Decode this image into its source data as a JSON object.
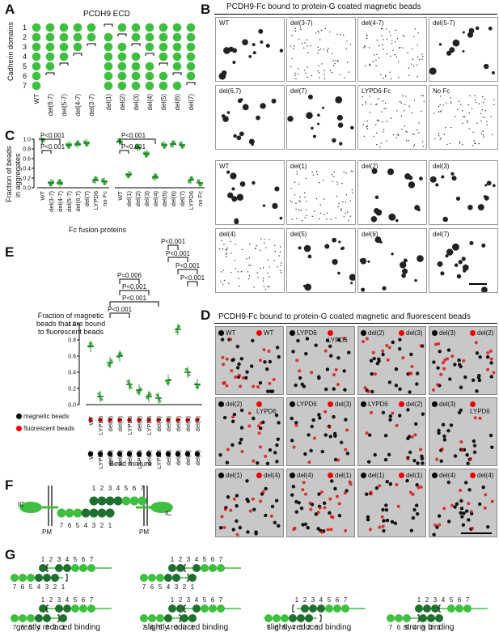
{
  "panels": {
    "A": "A",
    "B": "B",
    "C": "C",
    "D": "D",
    "E": "E",
    "F": "F",
    "G": "G"
  },
  "a": {
    "title": "PCDH9 ECD",
    "ylabel": "Cadherin domains",
    "domain_numbers": [
      "1",
      "2",
      "3",
      "4",
      "5",
      "6",
      "7"
    ],
    "constructs": [
      "WT",
      "del(6,7)",
      "del(5-7)",
      "del(4-7)",
      "del(3-7)",
      "del(1)",
      "del(2)",
      "del(3)",
      "del(4)",
      "del(5)",
      "del(6)",
      "del(7)"
    ]
  },
  "b": {
    "title": "PCDH9-Fc bound to protein-G coated magnetic beads",
    "row1": [
      "WT",
      "del(3-7)",
      "del(4-7)",
      "del(5-7)"
    ],
    "row2": [
      "del(6,7)",
      "del(7)",
      "LYPD6-Fc",
      "No Fc"
    ],
    "row3": [
      "WT",
      "del(1)",
      "del(2)",
      "del(3)"
    ],
    "row4": [
      "del(4)",
      "del(5)",
      "del(6)",
      "del(7)"
    ]
  },
  "c": {
    "ylabel_1": "Fraction of beads",
    "ylabel_2": "in aggregates",
    "yticks": [
      "0.0",
      "0.2",
      "0.4",
      "0.6",
      "0.8",
      "1.0"
    ],
    "xlabel": "Fc fusion proteins",
    "left_labels": [
      "WT",
      "del(3-7)",
      "del(4-7)",
      "del(5-7)",
      "del(6,7)",
      "del(7)",
      "LYPD6",
      "no Fc"
    ],
    "right_labels": [
      "WT",
      "del(1)",
      "del(2)",
      "del(3)",
      "del(4)",
      "del(5)",
      "del(6)",
      "del(7)",
      "LYPD6",
      "no Fc"
    ],
    "p_left": [
      "P<0.001",
      "P<0.001"
    ],
    "p_right": [
      "P<0.001",
      "P<0.001"
    ]
  },
  "chart_data": [
    {
      "type": "scatter",
      "title": "",
      "ylabel": "Fraction of beads in aggregates",
      "xlabel": "Fc fusion proteins",
      "ylim": [
        0,
        1.0
      ],
      "categories": [
        "WT",
        "del(3-7)",
        "del(4-7)",
        "del(5-7)",
        "del(6,7)",
        "del(7)",
        "LYPD6",
        "no Fc"
      ],
      "values": [
        1.0,
        0.1,
        0.1,
        0.88,
        0.9,
        0.92,
        0.16,
        0.13
      ]
    },
    {
      "type": "scatter",
      "title": "",
      "ylabel": "Fraction of beads in aggregates",
      "xlabel": "Fc fusion proteins",
      "ylim": [
        0,
        1.0
      ],
      "categories": [
        "WT",
        "del(1)",
        "del(2)",
        "del(3)",
        "del(4)",
        "del(5)",
        "del(6)",
        "del(7)",
        "LYPD6",
        "no Fc"
      ],
      "values": [
        0.95,
        0.27,
        0.83,
        0.7,
        0.22,
        0.88,
        0.9,
        0.88,
        0.16,
        0.1
      ]
    },
    {
      "type": "scatter",
      "title": "",
      "ylabel": "Fraction of magnetic beads that are bound to fluorescent beads",
      "xlabel": "Bead mixture",
      "ylim": [
        0,
        1.0
      ],
      "categories": [
        "WT/WT",
        "LYPD6/LYPD6",
        "del(2)/del(3)",
        "del(3)/del(2)",
        "del(2)/LYPD6",
        "LYPD6/del(2)",
        "del(3)/LYPD6",
        "LYPD6/del(3)",
        "del(1)/del(4)",
        "del(4)/del(1)",
        "del(1)/del(1)",
        "del(4)/del(4)"
      ],
      "values": [
        0.72,
        0.1,
        0.52,
        0.6,
        0.25,
        0.18,
        0.1,
        0.08,
        0.3,
        0.93,
        0.4,
        0.25
      ]
    }
  ],
  "d": {
    "title": "PCDH9-Fc bound to protein-G coated magnetic and fluorescent beads",
    "tiles": [
      [
        "WT",
        "WT"
      ],
      [
        "LYPD6",
        "LYPD6"
      ],
      [
        "del(2)",
        "del(3)"
      ],
      [
        "del(3)",
        "del(2)"
      ],
      [
        "del(2)",
        "LYPD6"
      ],
      [
        "LYPD6",
        "del(3)"
      ],
      [
        "LYPD6",
        "del(2)"
      ],
      [
        "del(3)",
        "LYPD6"
      ],
      [
        "del(1)",
        "del(4)"
      ],
      [
        "del(4)",
        "del(1)"
      ],
      [
        "del(1)",
        "del(1)"
      ],
      [
        "del(4)",
        "del(4)"
      ]
    ]
  },
  "e": {
    "ylabel_1": "Fraction of magnetic",
    "ylabel_2": "beads that are bound",
    "ylabel_3": "to fluorescent beads",
    "yticks": [
      "0.0",
      "0.2",
      "0.4",
      "0.6",
      "0.8",
      "1.0"
    ],
    "p_values": [
      "P=0.006",
      "P<0.001",
      "P<0.001",
      "P<0.001",
      "P<0.001",
      "P<0.001",
      "P<0.001",
      "P<0.001"
    ],
    "legend_magnetic": "magnetic beads",
    "legend_fluorescent": "fluorescent beads",
    "xlabel": "Bead mixture",
    "red_labels": [
      "WT",
      "LYPD6",
      "del(3)",
      "del(2)",
      "LYPD6",
      "del(2)",
      "LYPD6",
      "del(3)",
      "del(4)",
      "del(1)",
      "del(1)",
      "del(4)"
    ],
    "black_labels": [
      "WT",
      "LYPD6",
      "del(2)",
      "del(3)",
      "del(2)",
      "LYPD6",
      "del(3)",
      "LYPD6",
      "del(1)",
      "del(4)",
      "del(1)",
      "del(4)"
    ]
  },
  "f": {
    "top_numbers": [
      "1",
      "2",
      "3",
      "4",
      "5",
      "6",
      "7"
    ],
    "bottom_numbers": [
      "7",
      "6",
      "5",
      "4",
      "3",
      "2",
      "1"
    ],
    "ic": "IC",
    "pm": "PM"
  },
  "g": {
    "captions": [
      "greatly reduced binding",
      "slightly reduced binding",
      "slightly reduced binding",
      "strong binding"
    ]
  },
  "colors": {
    "green": "#3fbf3f",
    "dark_green": "#1f6f2f",
    "red": "#e00000"
  }
}
